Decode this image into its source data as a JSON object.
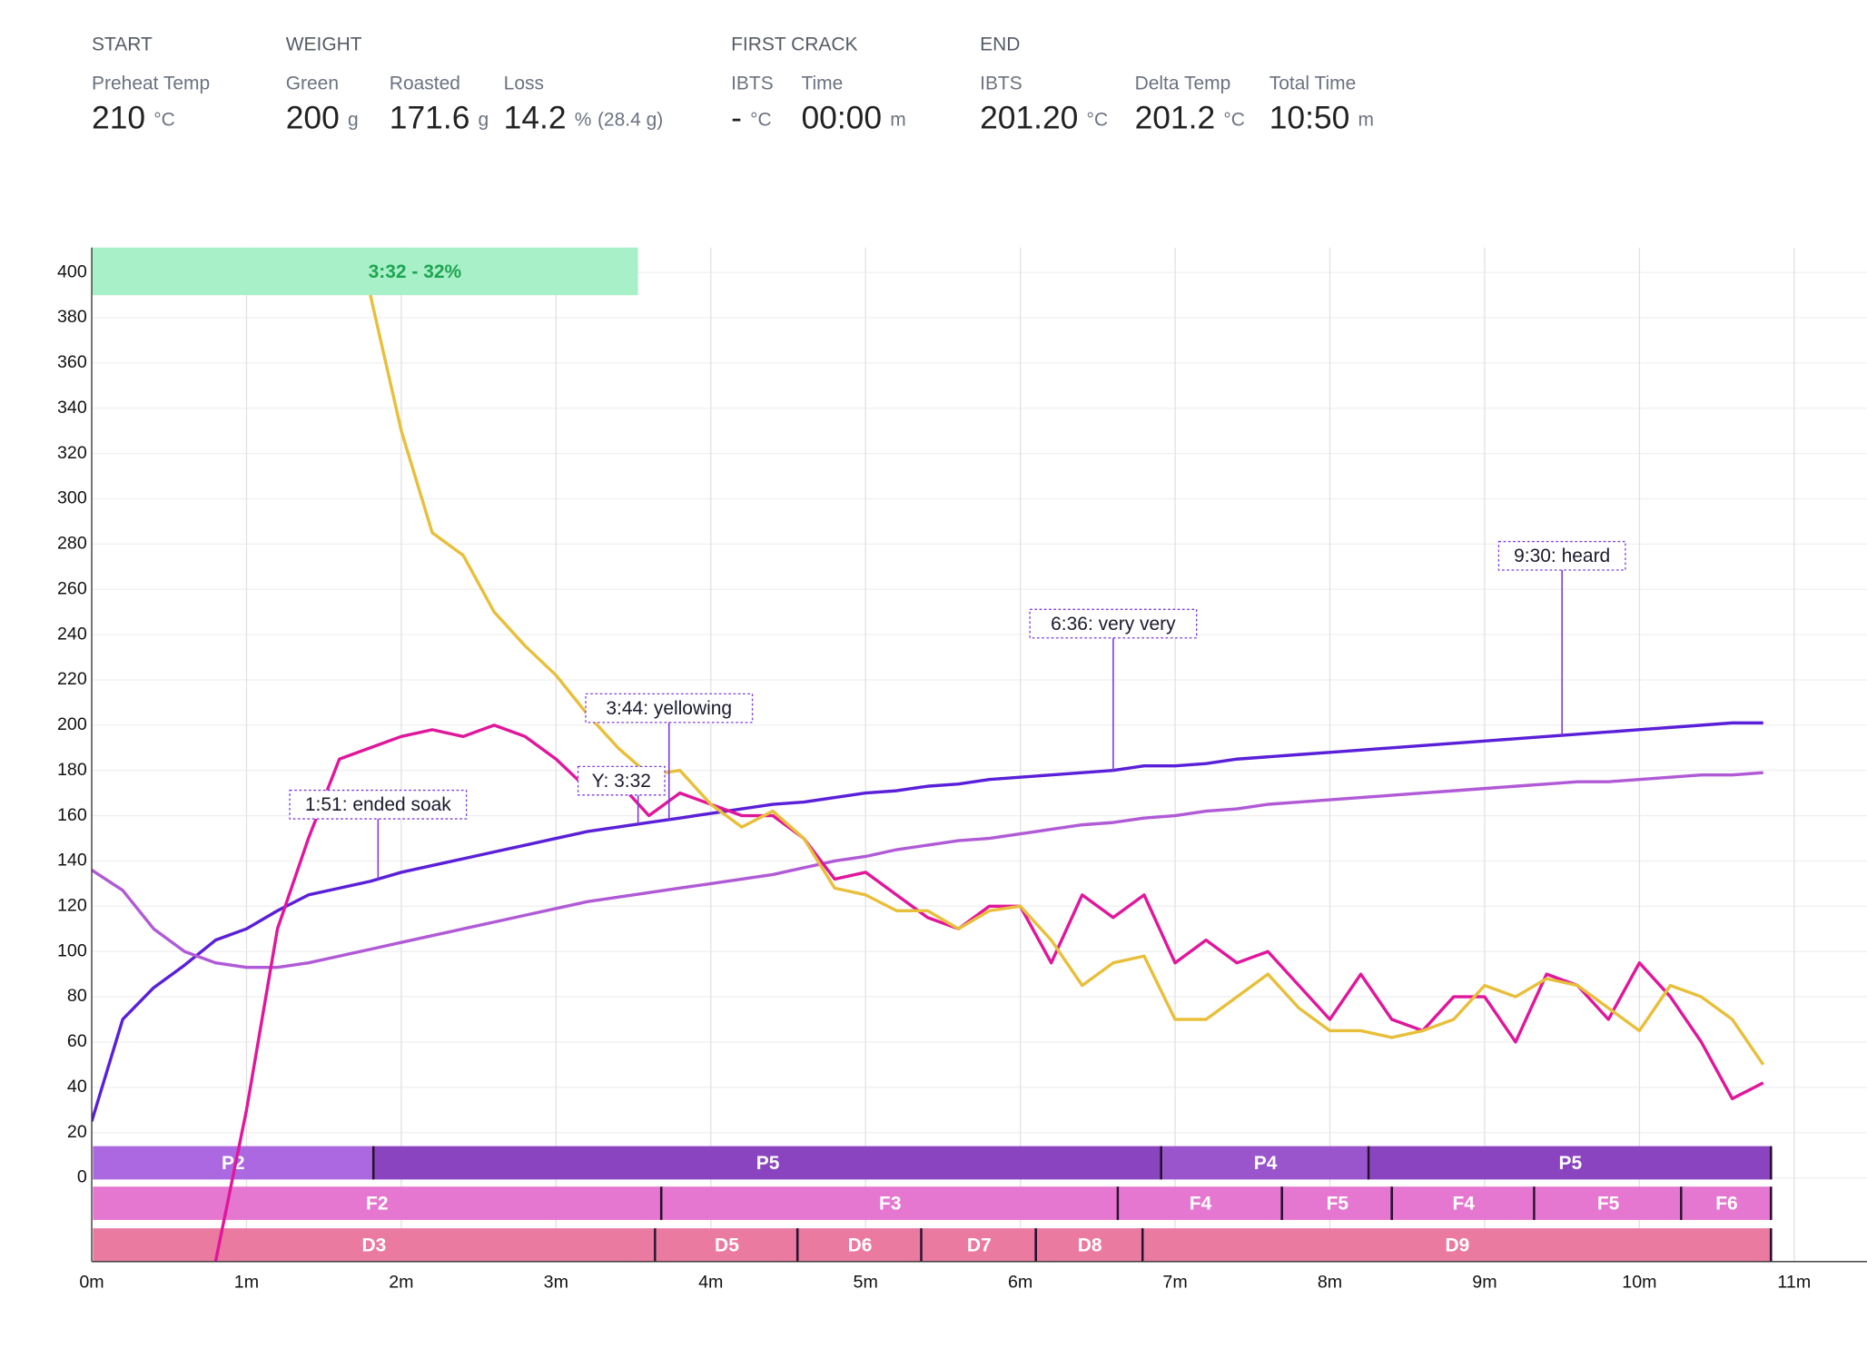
{
  "header": {
    "groups": [
      {
        "title": "START",
        "items": [
          {
            "label": "Preheat Temp",
            "value": "210",
            "unit": "°C"
          }
        ]
      },
      {
        "title": "WEIGHT",
        "items": [
          {
            "label": "Green",
            "value": "200",
            "unit": "g"
          },
          {
            "label": "Roasted",
            "value": "171.6",
            "unit": "g"
          },
          {
            "label": "Loss",
            "value": "14.2",
            "unit": "%",
            "extra": "(28.4 g)"
          }
        ]
      },
      {
        "title": "FIRST CRACK",
        "items": [
          {
            "label": "IBTS",
            "value": "-",
            "unit": "°C"
          },
          {
            "label": "Time",
            "value": "00:00",
            "unit": "m"
          }
        ]
      },
      {
        "title": "END",
        "items": [
          {
            "label": "IBTS",
            "value": "201.20",
            "unit": "°C"
          },
          {
            "label": "Delta Temp",
            "value": "201.2",
            "unit": "°C"
          },
          {
            "label": "Total Time",
            "value": "10:50",
            "unit": "m"
          }
        ]
      }
    ]
  },
  "chart_data": {
    "type": "line",
    "x": [
      0,
      0.2,
      0.4,
      0.6,
      0.8,
      1.0,
      1.2,
      1.4,
      1.6,
      1.8,
      2.0,
      2.2,
      2.4,
      2.6,
      2.8,
      3.0,
      3.2,
      3.4,
      3.6,
      3.8,
      4.0,
      4.2,
      4.4,
      4.6,
      4.8,
      5.0,
      5.2,
      5.4,
      5.6,
      5.8,
      6.0,
      6.2,
      6.4,
      6.6,
      6.8,
      7.0,
      7.2,
      7.4,
      7.6,
      7.8,
      8.0,
      8.2,
      8.4,
      8.6,
      8.8,
      9.0,
      9.2,
      9.4,
      9.6,
      9.8,
      10.0,
      10.2,
      10.4,
      10.6,
      10.8
    ],
    "series": [
      {
        "color": "#5a1fd8",
        "values": [
          25,
          70,
          84,
          94,
          105,
          110,
          118,
          125,
          128,
          131,
          135,
          138,
          141,
          144,
          147,
          150,
          153,
          155,
          157,
          159,
          161,
          163,
          165,
          166,
          168,
          170,
          171,
          173,
          174,
          176,
          177,
          178,
          179,
          180,
          182,
          182,
          183,
          185,
          186,
          187,
          188,
          189,
          190,
          191,
          192,
          193,
          194,
          195,
          196,
          197,
          198,
          199,
          200,
          201,
          201
        ]
      },
      {
        "color": "#b05ad6",
        "values": [
          136,
          127,
          110,
          100,
          95,
          93,
          93,
          95,
          98,
          101,
          104,
          107,
          110,
          113,
          116,
          119,
          122,
          124,
          126,
          128,
          130,
          132,
          134,
          137,
          140,
          142,
          145,
          147,
          149,
          150,
          152,
          154,
          156,
          157,
          159,
          160,
          162,
          163,
          165,
          166,
          167,
          168,
          169,
          170,
          171,
          172,
          173,
          174,
          175,
          175,
          176,
          177,
          178,
          178,
          179
        ]
      },
      {
        "color": "#e0169b",
        "values": [
          null,
          null,
          null,
          null,
          -37,
          30,
          110,
          150,
          185,
          190,
          195,
          198,
          195,
          200,
          195,
          185,
          172,
          175,
          160,
          170,
          165,
          160,
          160,
          150,
          132,
          135,
          125,
          115,
          110,
          120,
          120,
          95,
          125,
          115,
          125,
          95,
          105,
          95,
          100,
          85,
          70,
          90,
          70,
          65,
          80,
          80,
          60,
          90,
          85,
          70,
          95,
          80,
          60,
          35,
          42
        ]
      },
      {
        "color": "#e8bf3a",
        "values": [
          null,
          null,
          null,
          null,
          null,
          null,
          null,
          null,
          null,
          390,
          330,
          285,
          275,
          250,
          235,
          222,
          205,
          190,
          178,
          180,
          165,
          155,
          162,
          150,
          128,
          125,
          118,
          118,
          110,
          118,
          120,
          105,
          85,
          95,
          98,
          70,
          70,
          80,
          90,
          75,
          65,
          65,
          62,
          65,
          70,
          85,
          80,
          88,
          85,
          75,
          65,
          85,
          80,
          70,
          50
        ]
      }
    ],
    "xlim": [
      0,
      11.47
    ],
    "ylim": [
      -37,
      411
    ],
    "xticks": [
      {
        "value": 0,
        "label": "0m"
      },
      {
        "value": 1,
        "label": "1m"
      },
      {
        "value": 2,
        "label": "2m"
      },
      {
        "value": 3,
        "label": "3m"
      },
      {
        "value": 4,
        "label": "4m"
      },
      {
        "value": 5,
        "label": "5m"
      },
      {
        "value": 6,
        "label": "6m"
      },
      {
        "value": 7,
        "label": "7m"
      },
      {
        "value": 8,
        "label": "8m"
      },
      {
        "value": 9,
        "label": "9m"
      },
      {
        "value": 10,
        "label": "10m"
      },
      {
        "value": 11,
        "label": "11m"
      }
    ],
    "yticks": [
      0,
      20,
      40,
      60,
      80,
      100,
      120,
      140,
      160,
      180,
      200,
      220,
      240,
      260,
      280,
      300,
      320,
      340,
      360,
      380,
      400
    ],
    "grid": true,
    "highlight": {
      "label": "3:32 - 32%",
      "start": 0,
      "end": 3.53,
      "color": "#a8f0c8",
      "text_color": "#1fa552"
    },
    "annotations": [
      {
        "text": "1:51: ended soak",
        "x": 1.85
      },
      {
        "text": "3:44: yellowing",
        "x": 3.73
      },
      {
        "text": "Y: 3:32",
        "x": 3.53
      },
      {
        "text": "6:36: very very",
        "x": 6.6
      },
      {
        "text": "9:30: heard",
        "x": 9.5
      }
    ],
    "rows": [
      {
        "segments": [
          {
            "label": "P2",
            "start": 0,
            "end": 1.82,
            "color": "#ac68e0"
          },
          {
            "label": "P5",
            "start": 1.82,
            "end": 6.91,
            "color": "#8a44bf"
          },
          {
            "label": "P4",
            "start": 6.91,
            "end": 8.25,
            "color": "#9a55cc"
          },
          {
            "label": "P5",
            "start": 8.25,
            "end": 10.85,
            "color": "#8a44bf"
          }
        ]
      },
      {
        "segments": [
          {
            "label": "F2",
            "start": 0,
            "end": 3.68,
            "color": "#e577d0"
          },
          {
            "label": "F3",
            "start": 3.68,
            "end": 6.63,
            "color": "#e577d0"
          },
          {
            "label": "F4",
            "start": 6.63,
            "end": 7.69,
            "color": "#e577d0"
          },
          {
            "label": "F5",
            "start": 7.69,
            "end": 8.4,
            "color": "#e577d0"
          },
          {
            "label": "F4",
            "start": 8.4,
            "end": 9.32,
            "color": "#e577d0"
          },
          {
            "label": "F5",
            "start": 9.32,
            "end": 10.27,
            "color": "#e577d0"
          },
          {
            "label": "F6",
            "start": 10.27,
            "end": 10.85,
            "color": "#e577d0"
          }
        ]
      },
      {
        "segments": [
          {
            "label": "D3",
            "start": 0,
            "end": 3.64,
            "color": "#ea7aa0"
          },
          {
            "label": "D5",
            "start": 3.64,
            "end": 4.56,
            "color": "#ea7aa0"
          },
          {
            "label": "D6",
            "start": 4.56,
            "end": 5.36,
            "color": "#ea7aa0"
          },
          {
            "label": "D7",
            "start": 5.36,
            "end": 6.1,
            "color": "#ea7aa0"
          },
          {
            "label": "D8",
            "start": 6.1,
            "end": 6.79,
            "color": "#ea7aa0"
          },
          {
            "label": "D9",
            "start": 6.79,
            "end": 10.85,
            "color": "#ea7aa0"
          }
        ]
      }
    ]
  }
}
